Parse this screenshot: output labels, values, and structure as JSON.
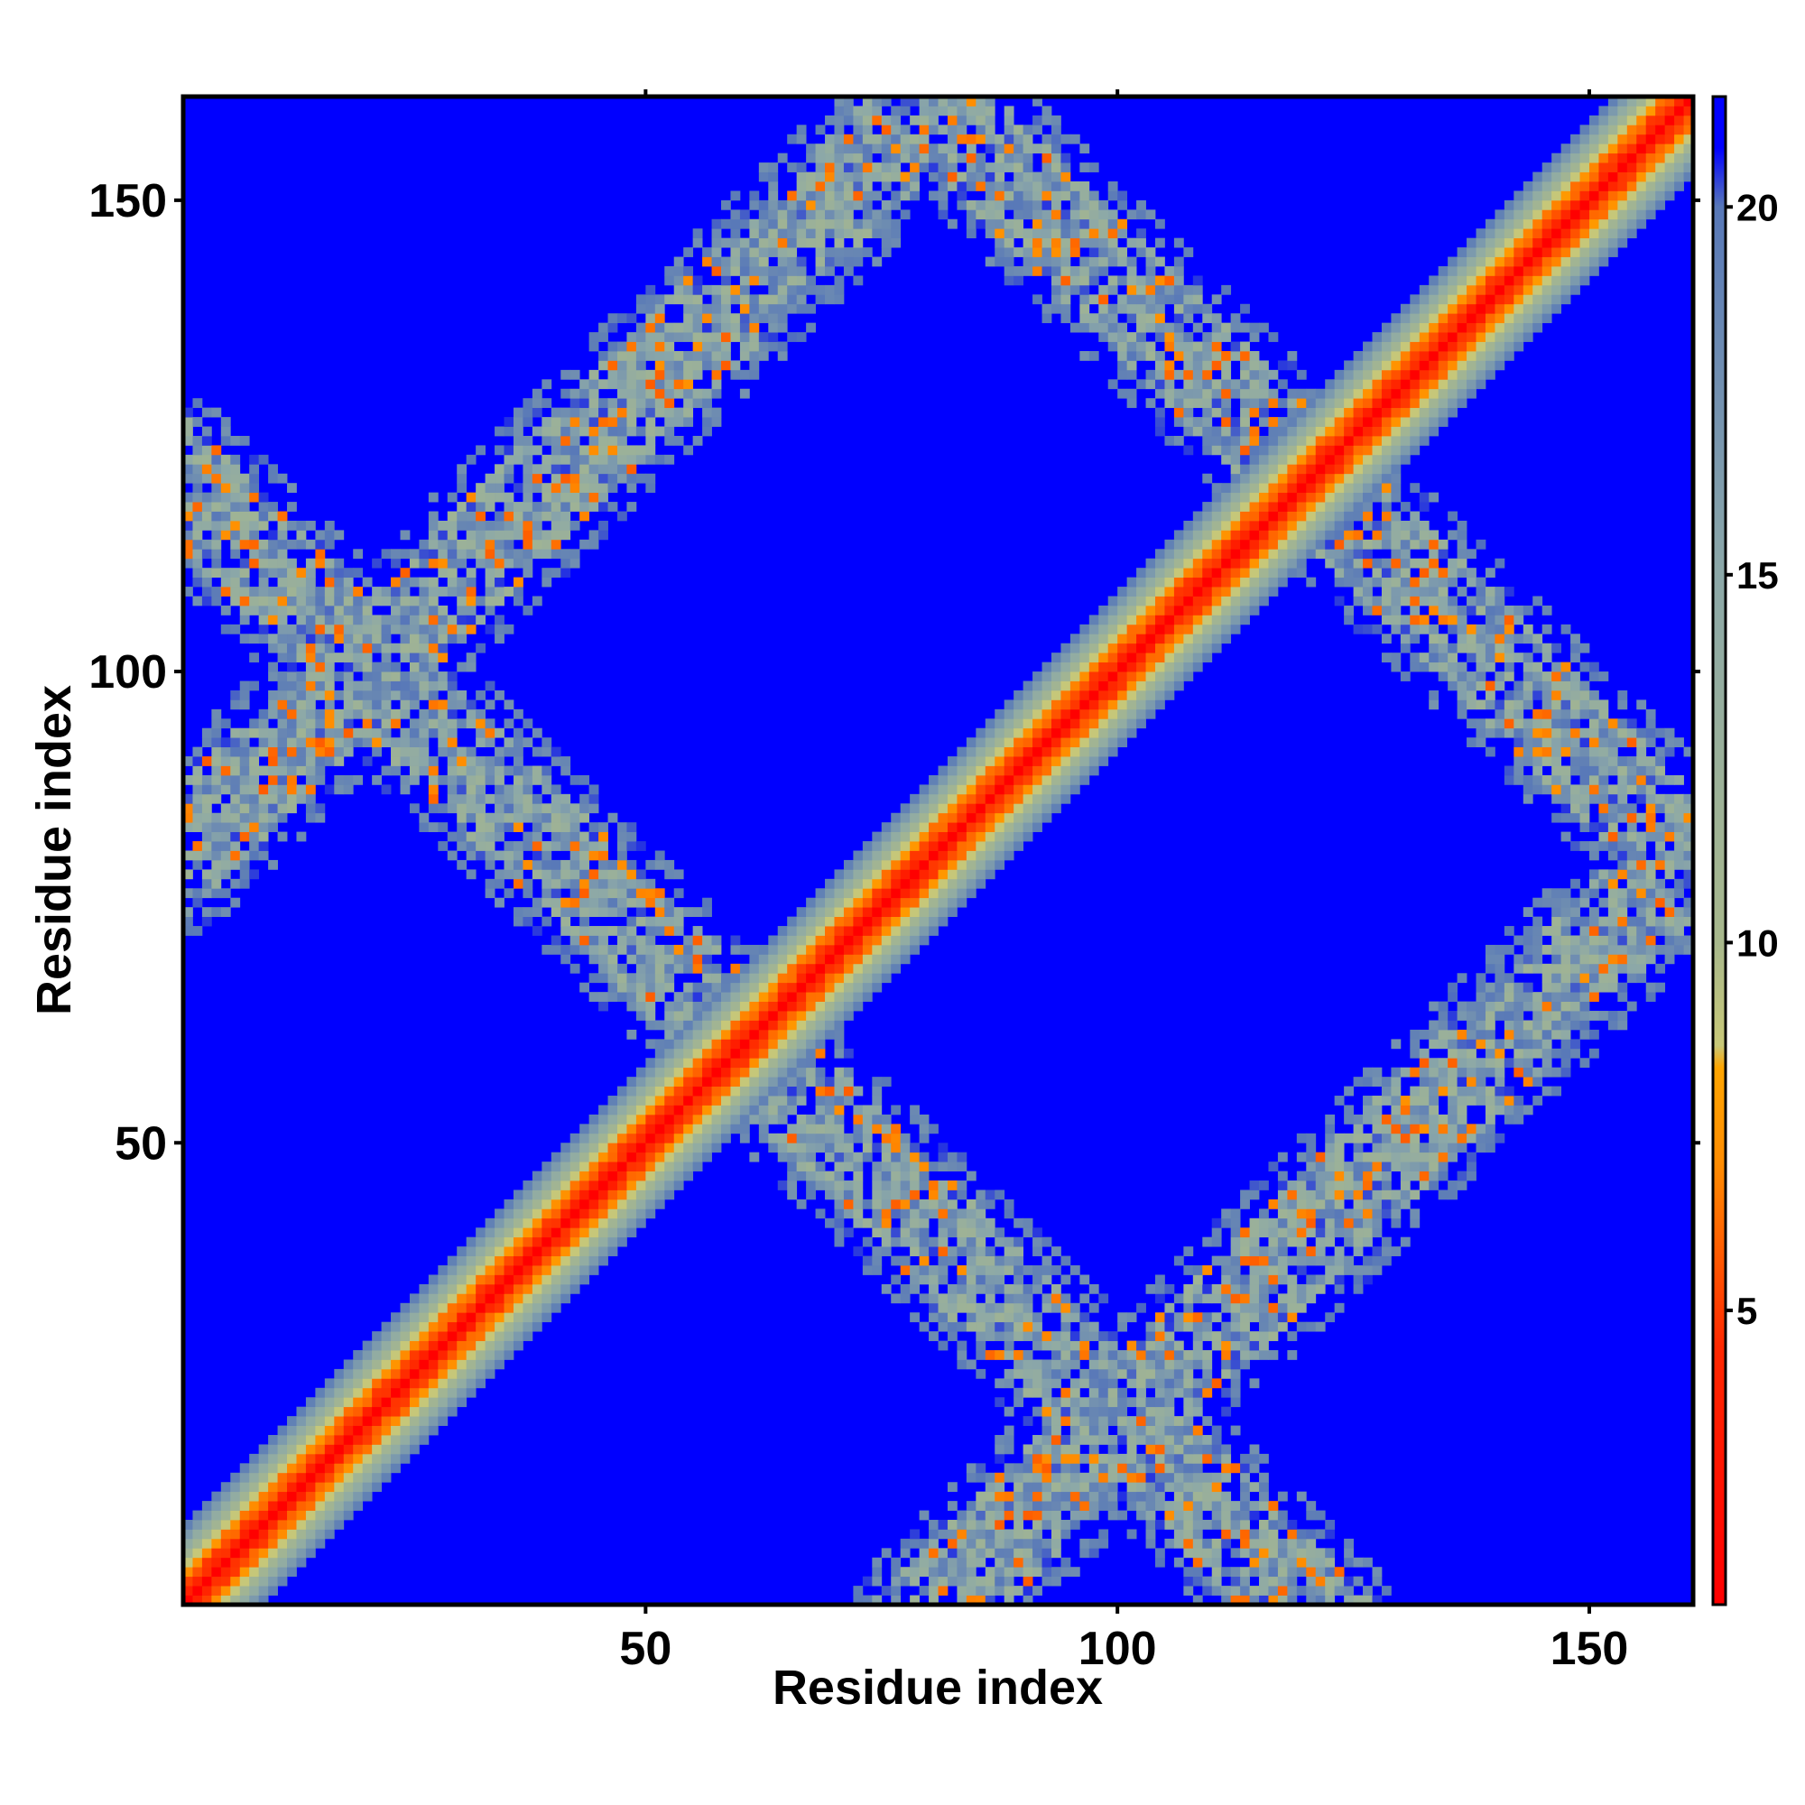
{
  "chart_data": {
    "type": "heatmap",
    "title": "",
    "xlabel": "Residue index",
    "ylabel": "Residue index",
    "n_residues": 160,
    "xlim": [
      1,
      160
    ],
    "ylim": [
      1,
      160
    ],
    "x_ticks": [
      50,
      100,
      150
    ],
    "y_ticks": [
      50,
      100,
      150
    ],
    "x_tick_labels": [
      "50",
      "100",
      "150"
    ],
    "y_tick_labels": [
      "50",
      "100",
      "150"
    ],
    "colorbar": {
      "range": [
        1,
        21.5
      ],
      "ticks": [
        5,
        10,
        15,
        20
      ],
      "tick_labels": [
        "5",
        "10",
        "15",
        "20"
      ],
      "stops": [
        {
          "value": 1,
          "color": "#ff0000"
        },
        {
          "value": 4.5,
          "color": "#ff2800"
        },
        {
          "value": 7,
          "color": "#ff8c00"
        },
        {
          "value": 8.3,
          "color": "#ffa500"
        },
        {
          "value": 8.6,
          "color": "#c8c878"
        },
        {
          "value": 10,
          "color": "#a8b88c"
        },
        {
          "value": 15,
          "color": "#8ca8a8"
        },
        {
          "value": 20,
          "color": "#5878b8"
        },
        {
          "value": 20.8,
          "color": "#0000ff"
        }
      ],
      "background_value": 21.5
    },
    "grid": false,
    "legend": "colorbar-right",
    "matrix_symmetric": true,
    "diagonal_value": 1,
    "structure": {
      "diagonal_band_width_residues": 9,
      "contact_bands": [
        {
          "description": "anti-diagonal band",
          "from": [
            60,
            60
          ],
          "to": [
            100,
            20
          ],
          "extends_to": [
            160,
            100
          ],
          "typical_value_range": [
            3,
            20
          ]
        },
        {
          "description": "anti-diagonal band",
          "from": [
            60,
            60
          ],
          "to": [
            20,
            100
          ],
          "typical_value_range": [
            3,
            20
          ]
        },
        {
          "description": "anti-diagonal band",
          "from": [
            120,
            120
          ],
          "to": [
            160,
            80
          ],
          "typical_value_range": [
            3,
            20
          ]
        },
        {
          "description": "anti-diagonal band",
          "from": [
            120,
            120
          ],
          "to": [
            80,
            160
          ],
          "typical_value_range": [
            3,
            20
          ]
        }
      ]
    }
  }
}
